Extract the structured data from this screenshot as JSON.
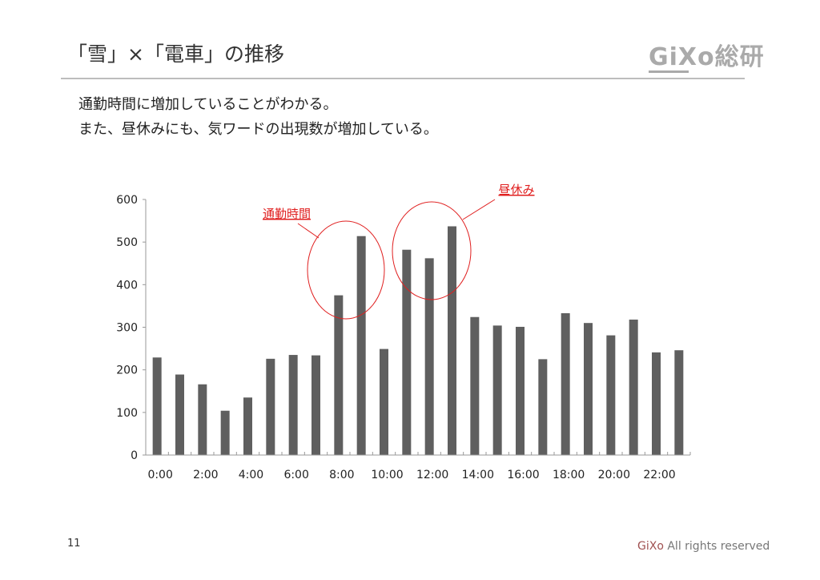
{
  "header": {
    "title": "「雪」×「電車」の推移",
    "logo": "GiXo総研"
  },
  "body": {
    "line1": "通勤時間に増加していることがわかる。",
    "line2": "また、昼休みにも、気ワードの出現数が増加している。"
  },
  "footer": {
    "page": "11",
    "brand": "GiXo",
    "rights": " All rights reserved"
  },
  "colors": {
    "bar": "#5f5f5f",
    "annotation": "#e02020"
  },
  "chart_data": {
    "type": "bar",
    "categories": [
      "0:00",
      "1:00",
      "2:00",
      "3:00",
      "4:00",
      "5:00",
      "6:00",
      "7:00",
      "8:00",
      "9:00",
      "10:00",
      "11:00",
      "12:00",
      "13:00",
      "14:00",
      "15:00",
      "16:00",
      "17:00",
      "18:00",
      "19:00",
      "20:00",
      "21:00",
      "22:00",
      "23:00"
    ],
    "tick_labels": [
      "0:00",
      "2:00",
      "4:00",
      "6:00",
      "8:00",
      "10:00",
      "12:00",
      "14:00",
      "16:00",
      "18:00",
      "20:00",
      "22:00"
    ],
    "values": [
      229,
      189,
      166,
      104,
      135,
      226,
      235,
      234,
      375,
      514,
      249,
      482,
      462,
      537,
      324,
      304,
      301,
      225,
      333,
      310,
      281,
      318,
      241,
      246
    ],
    "ylim": [
      0,
      600
    ],
    "yticks": [
      0,
      100,
      200,
      300,
      400,
      500,
      600
    ],
    "grid": false,
    "annotations": [
      {
        "text": "通勤時間",
        "categories": [
          "8:00",
          "9:00"
        ]
      },
      {
        "text": "昼休み",
        "categories": [
          "11:00",
          "12:00",
          "13:00"
        ]
      }
    ]
  }
}
